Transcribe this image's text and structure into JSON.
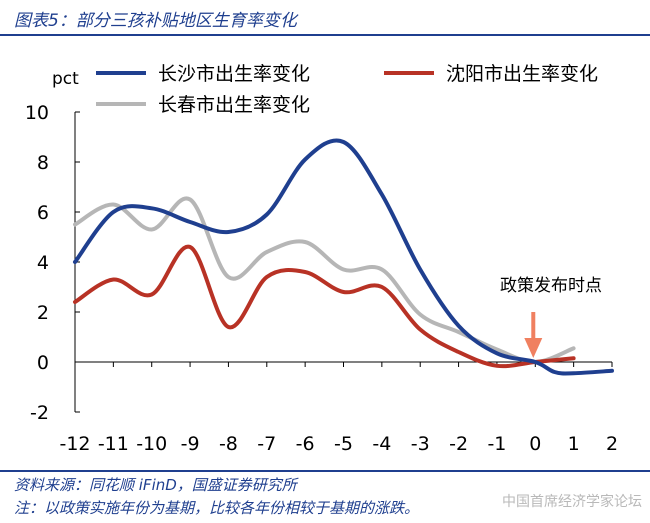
{
  "figure": {
    "title": "图表5：部分三孩补贴地区生育率变化",
    "source": "资料来源：同花顺 iFinD，国盛证券研究所",
    "note": "注：以政策实施年份为基期，比较各年份相较于基期的涨跌。",
    "watermark": "中国首席经济学家论坛"
  },
  "chart_data": {
    "type": "line",
    "title": "",
    "ylabel": "pct",
    "xlabel": "",
    "x": [
      -12,
      -11,
      -10,
      -9,
      -8,
      -7,
      -6,
      -5,
      -4,
      -3,
      -2,
      -1,
      0,
      1
    ],
    "xticks": [
      "-12",
      "-11",
      "-10",
      "-9",
      "-8",
      "-7",
      "-6",
      "-5",
      "-4",
      "-3",
      "-2",
      "-1",
      "0",
      "1",
      "2"
    ],
    "xlim": [
      -12,
      2
    ],
    "ylim": [
      -2,
      10
    ],
    "yticks": [
      "-2",
      "0",
      "2",
      "4",
      "6",
      "8",
      "10"
    ],
    "grid": false,
    "legend": "top",
    "series": [
      {
        "name": "长沙市出生率变化",
        "color": "#1f3f8f",
        "x": [
          -12,
          -11,
          -10,
          -9,
          -8,
          -7,
          -6,
          -5,
          -4,
          -3,
          -2,
          -1,
          0,
          0.5,
          1,
          2
        ],
        "values": [
          4.0,
          6.0,
          6.15,
          5.6,
          5.2,
          5.9,
          8.1,
          8.8,
          6.7,
          3.7,
          1.45,
          0.35,
          0.0,
          -0.4,
          -0.45,
          -0.35
        ]
      },
      {
        "name": "沈阳市出生率变化",
        "color": "#b83225",
        "x": [
          -12,
          -11,
          -10,
          -9,
          -8,
          -7,
          -6,
          -5,
          -4,
          -3,
          -2,
          -1,
          0,
          1
        ],
        "values": [
          2.4,
          3.3,
          2.7,
          4.6,
          1.4,
          3.4,
          3.6,
          2.8,
          3.0,
          1.3,
          0.4,
          -0.15,
          0.0,
          0.15
        ]
      },
      {
        "name": "长春市出生率变化",
        "color": "#b6b6b6",
        "x": [
          -12,
          -11,
          -10,
          -9,
          -8,
          -7,
          -6,
          -5,
          -4,
          -3,
          -2,
          -1,
          0,
          1
        ],
        "values": [
          5.5,
          6.3,
          5.3,
          6.5,
          3.4,
          4.4,
          4.8,
          3.7,
          3.7,
          1.9,
          1.2,
          0.5,
          0.0,
          0.55
        ]
      }
    ],
    "annotation": {
      "text": "政策发布时点",
      "x": 0,
      "color": "#f08060"
    }
  }
}
